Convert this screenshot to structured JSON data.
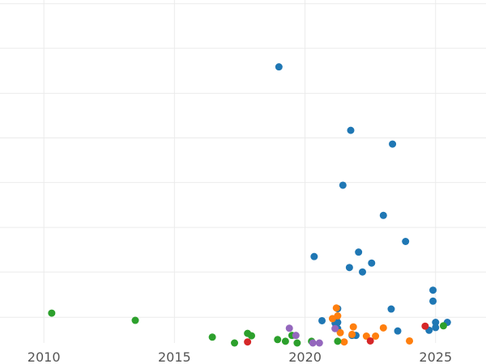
{
  "chart_data": {
    "type": "scatter",
    "title": "",
    "xlabel": "",
    "ylabel": "",
    "xlim": [
      2008.32,
      2026.93
    ],
    "ylim": [
      0.0,
      1.0
    ],
    "grid": true,
    "legend": "none",
    "x_ticks": [
      2010,
      2015,
      2020,
      2025
    ],
    "x_tick_labels": [
      "2010",
      "2015",
      "2020",
      "2025"
    ],
    "y_grid_values": [
      0.075,
      0.207,
      0.337,
      0.468,
      0.598,
      0.728,
      0.859,
      0.989
    ],
    "series": [
      {
        "color": "#1f77b4",
        "points": [
          [
            2019.0,
            0.805
          ],
          [
            2021.75,
            0.62
          ],
          [
            2023.35,
            0.58
          ],
          [
            2021.45,
            0.46
          ],
          [
            2023.0,
            0.372
          ],
          [
            2023.85,
            0.296
          ],
          [
            2022.05,
            0.265
          ],
          [
            2020.35,
            0.252
          ],
          [
            2022.55,
            0.233
          ],
          [
            2021.7,
            0.22
          ],
          [
            2022.2,
            0.207
          ],
          [
            2024.9,
            0.154
          ],
          [
            2024.9,
            0.122
          ],
          [
            2023.3,
            0.099
          ],
          [
            2021.25,
            0.1
          ],
          [
            2021.2,
            0.072
          ],
          [
            2020.65,
            0.065
          ],
          [
            2021.25,
            0.06
          ],
          [
            2021.15,
            0.058
          ],
          [
            2021.25,
            0.042
          ],
          [
            2023.55,
            0.035
          ],
          [
            2021.95,
            0.022
          ],
          [
            2021.8,
            0.022
          ],
          [
            2025.0,
            0.06
          ],
          [
            2025.0,
            0.045
          ],
          [
            2025.45,
            0.06
          ],
          [
            2024.75,
            0.037
          ]
        ]
      },
      {
        "color": "#ff7f0e",
        "points": [
          [
            2021.2,
            0.102
          ],
          [
            2021.05,
            0.071
          ],
          [
            2021.25,
            0.079
          ],
          [
            2021.85,
            0.047
          ],
          [
            2021.35,
            0.03
          ],
          [
            2021.8,
            0.025
          ],
          [
            2022.35,
            0.02
          ],
          [
            2022.7,
            0.02
          ],
          [
            2023.0,
            0.044
          ],
          [
            2021.5,
            0.003
          ],
          [
            2024.0,
            0.006
          ]
        ]
      },
      {
        "color": "#2ca02c",
        "points": [
          [
            2010.3,
            0.087
          ],
          [
            2013.5,
            0.066
          ],
          [
            2016.45,
            0.017
          ],
          [
            2017.8,
            0.028
          ],
          [
            2017.95,
            0.021
          ],
          [
            2017.3,
            0.0
          ],
          [
            2018.95,
            0.01
          ],
          [
            2019.25,
            0.005
          ],
          [
            2019.5,
            0.022
          ],
          [
            2019.7,
            0.0
          ],
          [
            2020.25,
            0.005
          ],
          [
            2021.25,
            0.005
          ],
          [
            2025.3,
            0.05
          ]
        ]
      },
      {
        "color": "#d62728",
        "points": [
          [
            2017.8,
            0.003
          ],
          [
            2022.5,
            0.006
          ],
          [
            2024.6,
            0.049
          ]
        ]
      },
      {
        "color": "#9467bd",
        "points": [
          [
            2019.4,
            0.043
          ],
          [
            2019.65,
            0.022
          ],
          [
            2020.3,
            0.0
          ],
          [
            2020.55,
            0.0
          ],
          [
            2021.15,
            0.042
          ]
        ]
      }
    ]
  }
}
